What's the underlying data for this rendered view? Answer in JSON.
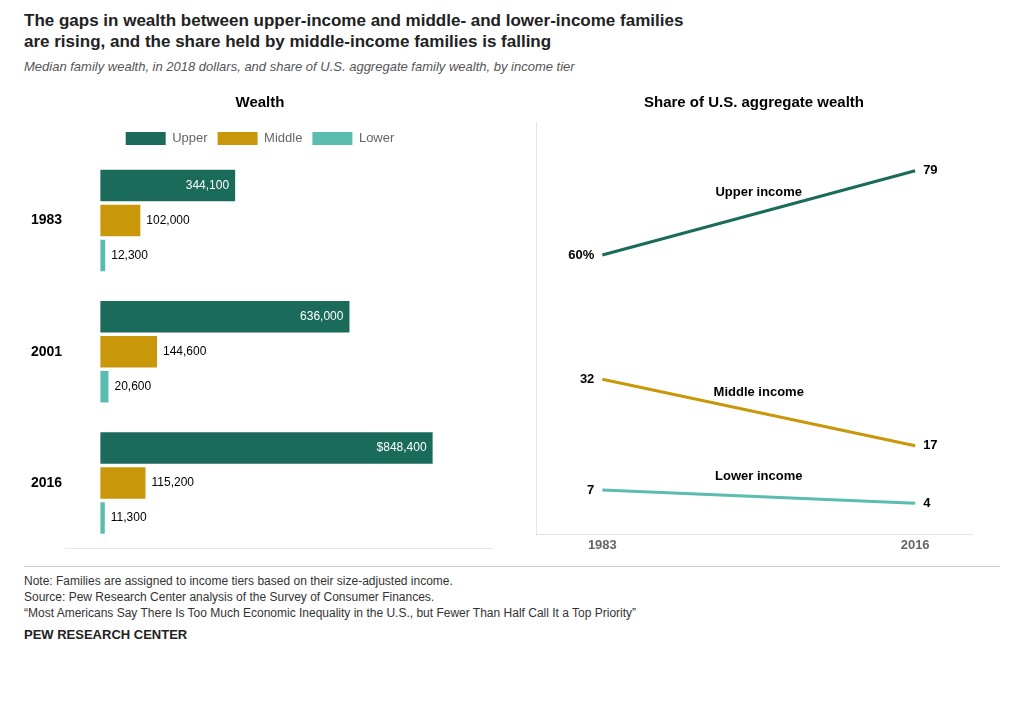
{
  "title": "The gaps in wealth between upper-income and middle- and lower-income families\nare rising, and the share held by middle-income families is falling",
  "subtitle": "Median family wealth, in 2018 dollars, and share of U.S. aggregate family wealth, by income tier",
  "notes": [
    "Note: Families are assigned to income tiers based on their size-adjusted income.",
    "Source: Pew Research Center analysis of the Survey of Consumer Finances.",
    "“Most Americans Say There Is Too Much Economic Inequality in the U.S., but Fewer Than Half Call It a Top Priority”"
  ],
  "footer": "PEW RESEARCH CENTER",
  "chart_data": [
    {
      "type": "bar",
      "orientation": "horizontal",
      "title": "Wealth",
      "categories": [
        "1983",
        "2001",
        "2016"
      ],
      "series": [
        {
          "name": "Upper",
          "color": "#1a6b5a",
          "values": [
            344100,
            636000,
            848400
          ],
          "value_labels": [
            "344,100",
            "636,000",
            "$848,400"
          ]
        },
        {
          "name": "Middle",
          "color": "#c9980a",
          "values": [
            102000,
            144600,
            115200
          ],
          "value_labels": [
            "102,000",
            "144,600",
            "115,200"
          ]
        },
        {
          "name": "Lower",
          "color": "#5bbcb0",
          "values": [
            12300,
            20600,
            11300
          ],
          "value_labels": [
            "12,300",
            "20,600",
            "11,300"
          ]
        }
      ],
      "xlim": [
        -90000,
        1000000
      ],
      "tick_labels": "y",
      "grid": false,
      "legend": "top",
      "data_labels": true
    },
    {
      "type": "line",
      "title": "Share of U.S. aggregate wealth",
      "x": [
        1983,
        2016
      ],
      "series": [
        {
          "name": "Upper income",
          "color": "#1a6b5a",
          "values": [
            60,
            79
          ],
          "value_labels": [
            "60%",
            "79"
          ]
        },
        {
          "name": "Middle income",
          "color": "#c9980a",
          "values": [
            32,
            17
          ],
          "value_labels": [
            "32",
            "17"
          ]
        },
        {
          "name": "Lower income",
          "color": "#5bbcb0",
          "values": [
            7,
            4
          ],
          "value_labels": [
            "7",
            "4"
          ]
        }
      ],
      "xlim": [
        1976,
        2022
      ],
      "xticks": [
        1983,
        2016
      ],
      "ylim": [
        -3,
        90
      ],
      "tick_labels": "x",
      "grid": false,
      "data_labels": true
    }
  ]
}
